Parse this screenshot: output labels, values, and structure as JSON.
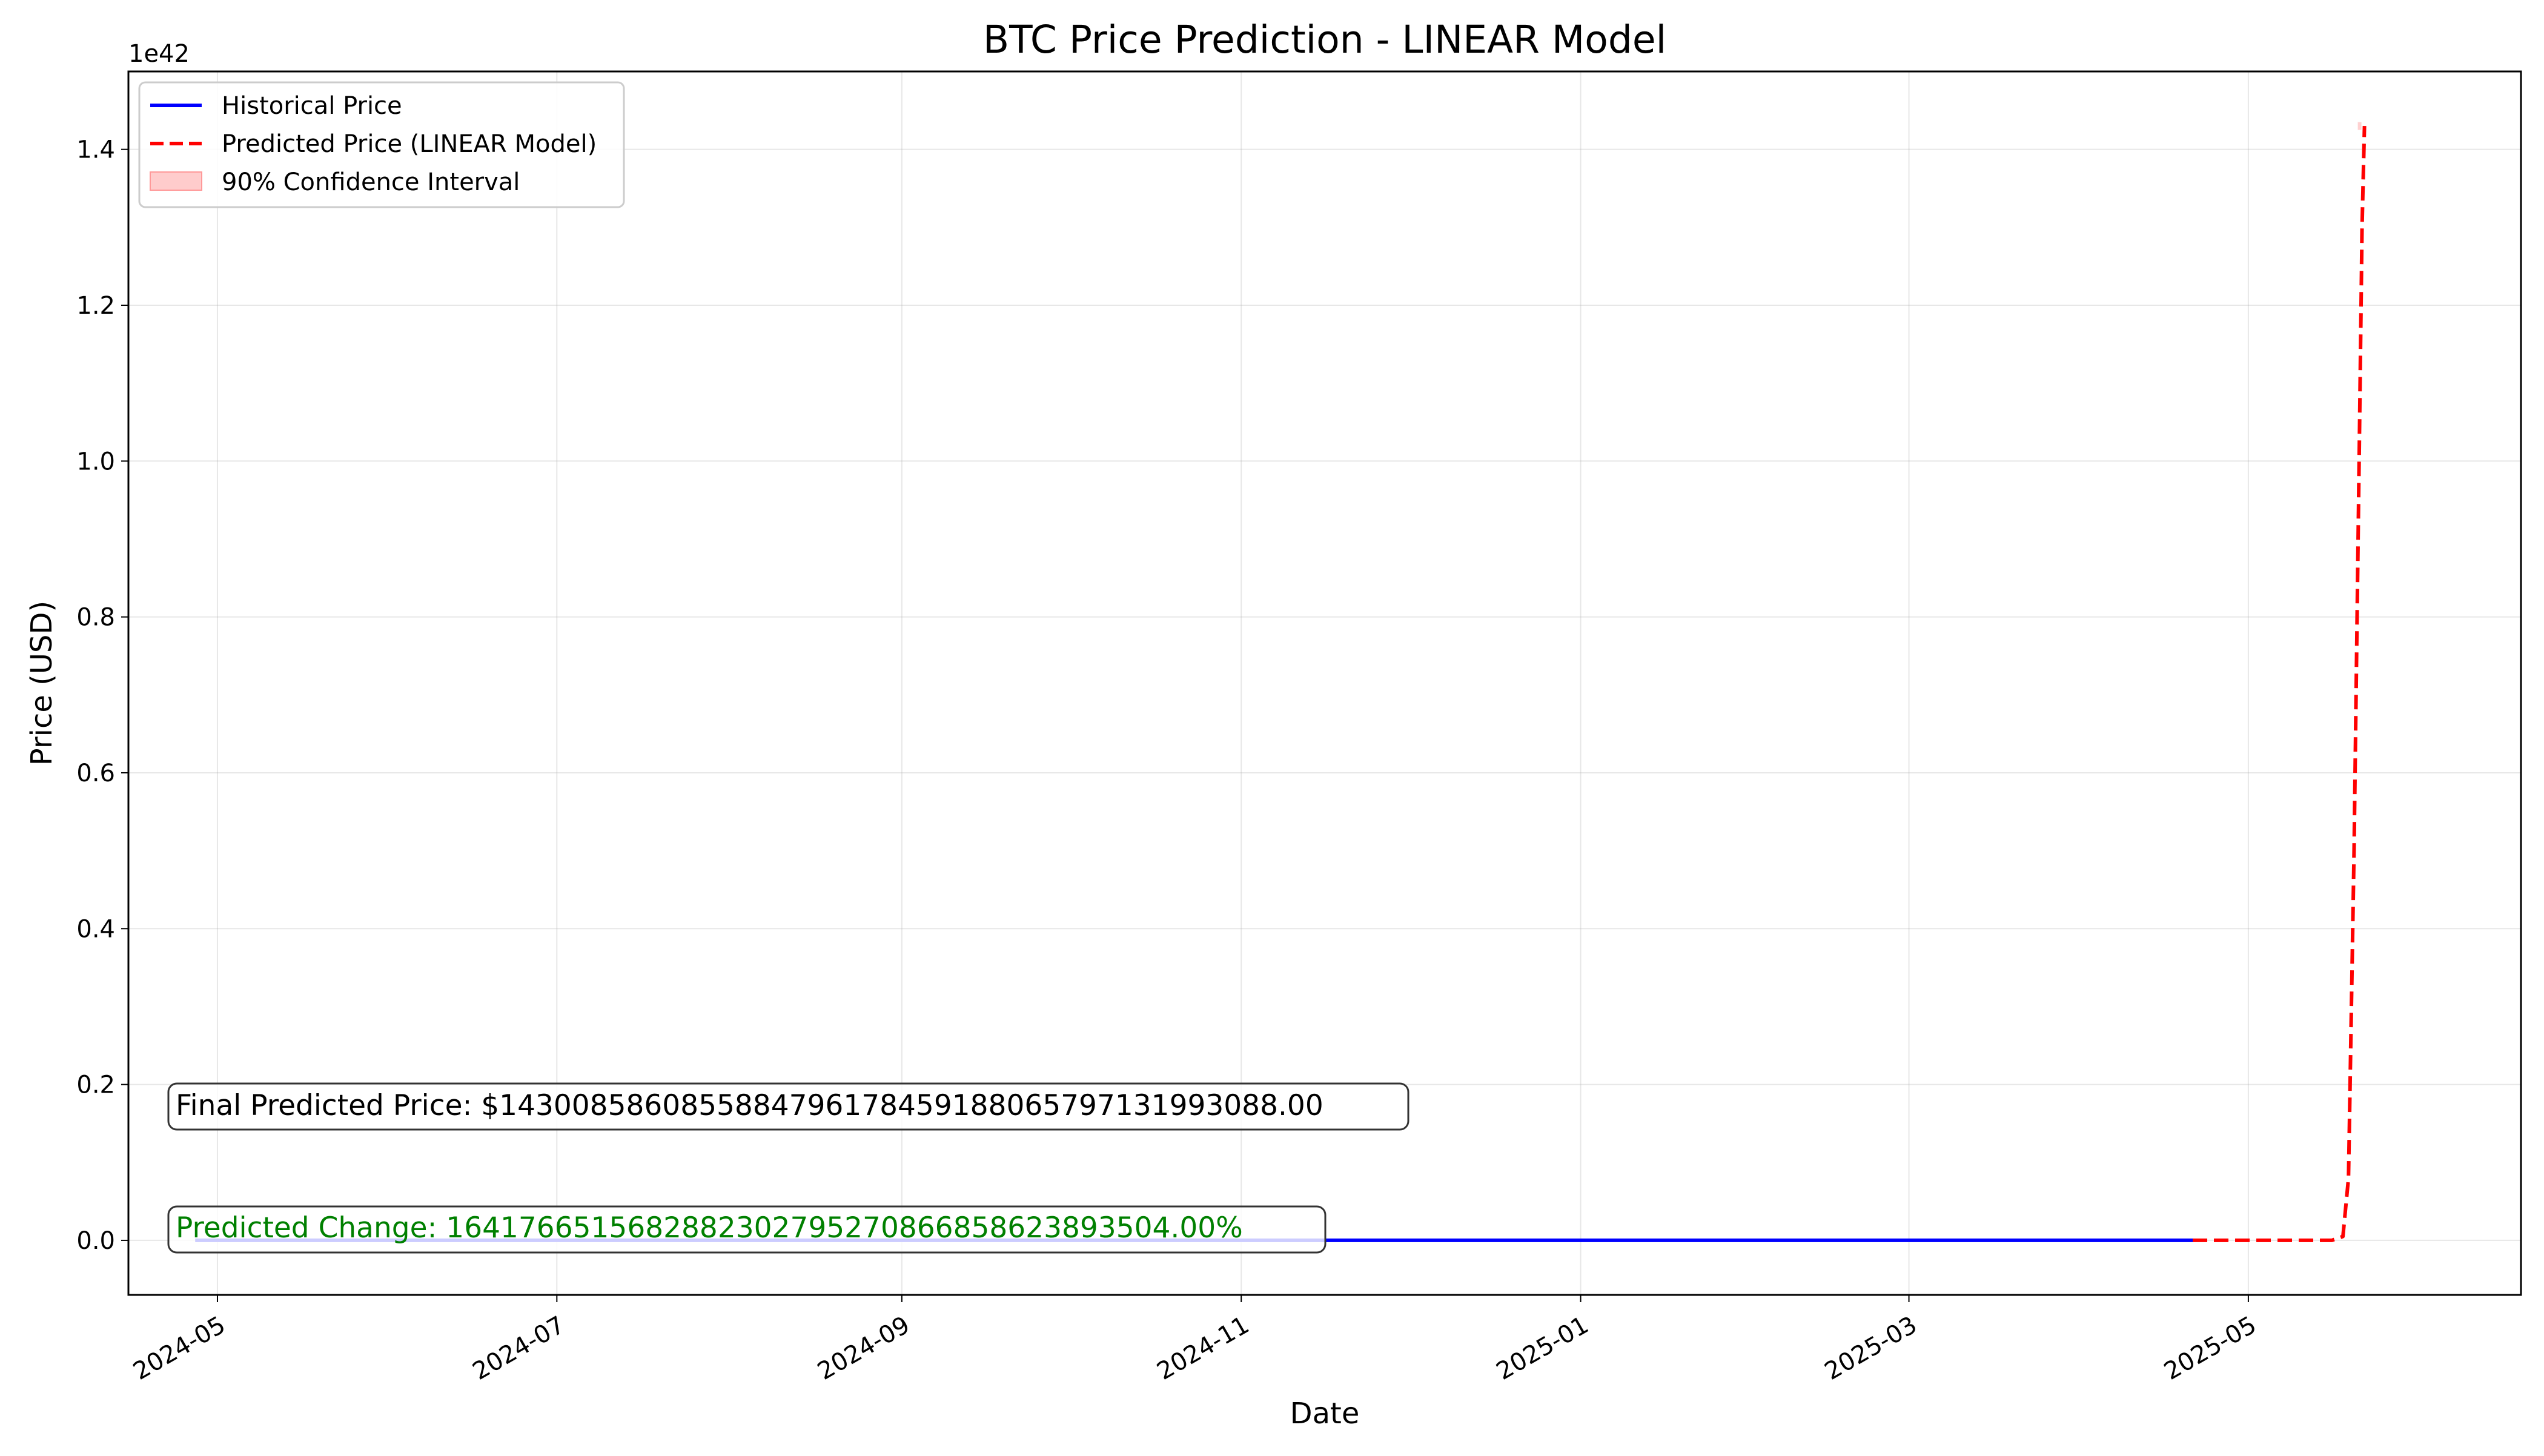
{
  "chart_data": {
    "type": "line",
    "title": "BTC Price Prediction - LINEAR Model",
    "xlabel": "Date",
    "ylabel": "Price (USD)",
    "y_offset_label": "1e42",
    "y_scale": 1e+42,
    "xlim": [
      "2024-04-15",
      "2025-06-19"
    ],
    "ylim": [
      -7e+40,
      1.5e+42
    ],
    "x_ticks": [
      "2024-05",
      "2024-07",
      "2024-09",
      "2024-11",
      "2025-01",
      "2025-03",
      "2025-05"
    ],
    "y_ticks": [
      0.0,
      2e+41,
      4e+41,
      6e+41,
      8e+41,
      1e+42,
      1.2e+42,
      1.4e+42
    ],
    "y_tick_labels": [
      "0.0",
      "0.2",
      "0.4",
      "0.6",
      "0.8",
      "1.0",
      "1.2",
      "1.4"
    ],
    "grid": true,
    "legend_position": "top-left",
    "series": [
      {
        "name": "Historical Price",
        "color": "#0000ff",
        "style": "solid",
        "x": [
          "2024-04-27",
          "2025-04-21"
        ],
        "y": [
          0,
          0
        ]
      },
      {
        "name": "Predicted Price (LINEAR Model)",
        "color": "#ff0000",
        "style": "dashed",
        "x": [
          "2025-04-21",
          "2025-05-10",
          "2025-05-16",
          "2025-05-18",
          "2025-05-19",
          "2025-05-20",
          "2025-05-21",
          "2025-05-21",
          "2025-05-21"
        ],
        "y": [
          0,
          0,
          0,
          5e+39,
          8e+40,
          5e+41,
          1.05e+42,
          1.3e+42,
          1.43e+42
        ]
      },
      {
        "name": "90% Confidence Interval",
        "color": "#ffcccc",
        "style": "band",
        "x": [
          "2025-05-21"
        ],
        "lower": [
          1.425e+42
        ],
        "upper": [
          1.435e+42
        ]
      }
    ],
    "annotations": [
      {
        "name": "final-price-annotation",
        "text": "Final Predicted Price: $1430085860855884796178459188065797131993088.00",
        "color": "#000000"
      },
      {
        "name": "predicted-change-annotation",
        "text": "Predicted Change: 1641766515682882302795270866858623893504.00%",
        "color": "#008000"
      }
    ]
  }
}
